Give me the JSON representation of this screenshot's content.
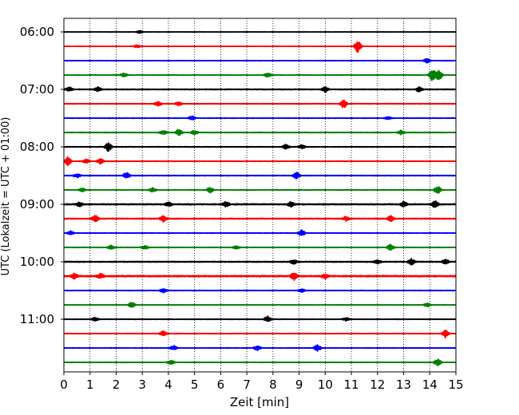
{
  "chart_data": {
    "type": "line",
    "title": "",
    "xlabel": "Zeit  [min]",
    "ylabel": "UTC (Lokalzeit = UTC + 01:00)",
    "xlim": [
      0,
      15
    ],
    "x_ticks": [
      "0",
      "1",
      "2",
      "3",
      "4",
      "5",
      "6",
      "7",
      "8",
      "9",
      "10",
      "11",
      "12",
      "13",
      "14",
      "15"
    ],
    "y_ticks": [
      "06:00",
      "07:00",
      "08:00",
      "09:00",
      "10:00",
      "11:00"
    ],
    "grid": "vertical-dotted",
    "trace_colors": [
      "#000000",
      "#ff0000",
      "#0000ff",
      "#008000"
    ],
    "series": [
      {
        "start": "06:00",
        "amplitude": 0.3,
        "events": [
          [
            2.9,
            0.6
          ]
        ]
      },
      {
        "start": "06:15",
        "amplitude": 0.3,
        "events": [
          [
            2.8,
            0.6
          ],
          [
            11.25,
            2.6
          ]
        ]
      },
      {
        "start": "06:30",
        "amplitude": 0.35,
        "events": [
          [
            13.9,
            0.9
          ]
        ]
      },
      {
        "start": "06:45",
        "amplitude": 0.4,
        "events": [
          [
            2.3,
            0.8
          ],
          [
            7.8,
            1.0
          ],
          [
            14.1,
            2.6
          ],
          [
            14.35,
            2.3
          ]
        ]
      },
      {
        "start": "07:00",
        "amplitude": 0.6,
        "events": [
          [
            0.2,
            0.9
          ],
          [
            1.3,
            0.9
          ],
          [
            10.0,
            1.1
          ],
          [
            13.6,
            1.0
          ]
        ]
      },
      {
        "start": "07:15",
        "amplitude": 0.5,
        "events": [
          [
            3.6,
            0.9
          ],
          [
            4.4,
            0.7
          ],
          [
            10.7,
            1.8
          ]
        ]
      },
      {
        "start": "07:30",
        "amplitude": 0.4,
        "events": [
          [
            4.9,
            0.9
          ],
          [
            12.4,
            0.6
          ]
        ]
      },
      {
        "start": "07:45",
        "amplitude": 0.5,
        "events": [
          [
            3.8,
            0.9
          ],
          [
            4.4,
            1.4
          ],
          [
            5.0,
            0.8
          ],
          [
            12.9,
            0.8
          ]
        ]
      },
      {
        "start": "08:00",
        "amplitude": 0.5,
        "events": [
          [
            1.7,
            1.8
          ],
          [
            8.5,
            1.0
          ],
          [
            9.1,
            0.8
          ]
        ]
      },
      {
        "start": "08:15",
        "amplitude": 0.4,
        "events": [
          [
            0.15,
            1.8
          ],
          [
            0.85,
            0.9
          ],
          [
            1.4,
            1.2
          ]
        ]
      },
      {
        "start": "08:30",
        "amplitude": 0.5,
        "events": [
          [
            0.5,
            0.8
          ],
          [
            2.4,
            1.3
          ],
          [
            8.9,
            1.4
          ]
        ]
      },
      {
        "start": "08:45",
        "amplitude": 0.4,
        "events": [
          [
            0.7,
            0.8
          ],
          [
            3.4,
            0.9
          ],
          [
            5.6,
            1.2
          ],
          [
            14.3,
            1.6
          ]
        ]
      },
      {
        "start": "09:00",
        "amplitude": 0.8,
        "events": [
          [
            0.6,
            0.9
          ],
          [
            4.0,
            0.9
          ],
          [
            6.2,
            1.0
          ],
          [
            8.7,
            1.1
          ],
          [
            13.0,
            1.0
          ],
          [
            14.2,
            1.4
          ]
        ]
      },
      {
        "start": "09:15",
        "amplitude": 0.7,
        "events": [
          [
            1.2,
            1.4
          ],
          [
            3.8,
            1.2
          ],
          [
            10.8,
            0.9
          ],
          [
            12.5,
            1.1
          ]
        ]
      },
      {
        "start": "09:30",
        "amplitude": 0.4,
        "events": [
          [
            0.25,
            0.9
          ],
          [
            9.1,
            1.3
          ]
        ]
      },
      {
        "start": "09:45",
        "amplitude": 0.4,
        "events": [
          [
            1.8,
            0.8
          ],
          [
            3.1,
            0.8
          ],
          [
            6.6,
            0.7
          ],
          [
            12.5,
            1.3
          ]
        ]
      },
      {
        "start": "10:00",
        "amplitude": 0.7,
        "events": [
          [
            8.8,
            0.9
          ],
          [
            12.0,
            0.8
          ],
          [
            13.3,
            1.2
          ],
          [
            14.6,
            1.0
          ]
        ]
      },
      {
        "start": "10:15",
        "amplitude": 1.0,
        "events": [
          [
            0.4,
            1.1
          ],
          [
            1.4,
            1.0
          ],
          [
            8.8,
            1.5
          ],
          [
            10.0,
            0.9
          ]
        ]
      },
      {
        "start": "10:30",
        "amplitude": 0.45,
        "events": [
          [
            3.8,
            0.9
          ],
          [
            9.1,
            0.7
          ]
        ]
      },
      {
        "start": "10:45",
        "amplitude": 0.35,
        "events": [
          [
            2.6,
            1.1
          ],
          [
            13.9,
            0.8
          ]
        ]
      },
      {
        "start": "11:00",
        "amplitude": 0.45,
        "events": [
          [
            1.2,
            0.7
          ],
          [
            7.8,
            1.2
          ],
          [
            10.8,
            0.6
          ]
        ]
      },
      {
        "start": "11:15",
        "amplitude": 0.45,
        "events": [
          [
            3.8,
            1.0
          ],
          [
            14.6,
            1.6
          ]
        ]
      },
      {
        "start": "11:30",
        "amplitude": 0.4,
        "events": [
          [
            4.2,
            0.9
          ],
          [
            7.4,
            1.0
          ],
          [
            9.7,
            1.6
          ]
        ]
      },
      {
        "start": "11:45",
        "amplitude": 0.4,
        "events": [
          [
            4.1,
            0.9
          ],
          [
            14.3,
            1.4
          ]
        ]
      }
    ]
  }
}
